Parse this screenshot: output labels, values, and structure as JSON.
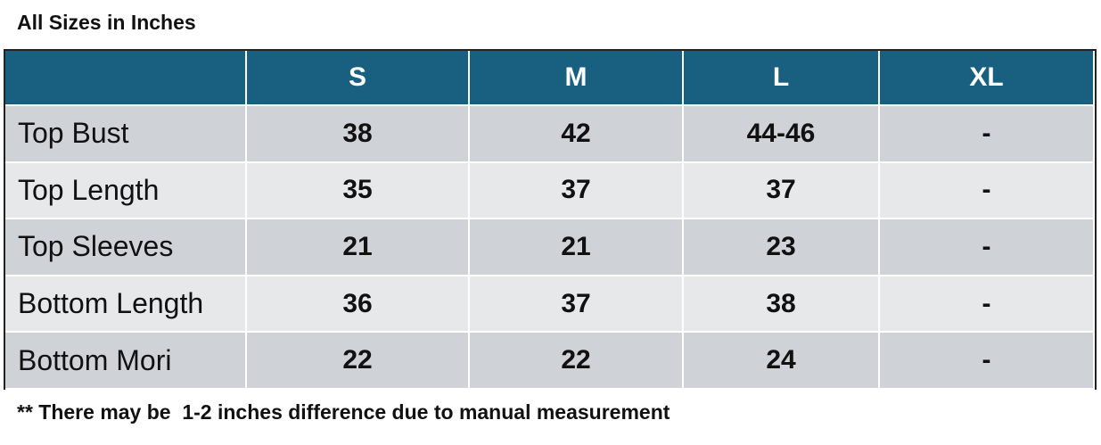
{
  "header": {
    "title": "All Sizes in Inches"
  },
  "table": {
    "columns": [
      "S",
      "M",
      "L",
      "XL"
    ],
    "rows": [
      {
        "label": "Top Bust",
        "cells": [
          38,
          42,
          "44-46",
          "-"
        ]
      },
      {
        "label": "Top Length",
        "cells": [
          35,
          37,
          37,
          "-"
        ]
      },
      {
        "label": "Top Sleeves",
        "cells": [
          21,
          21,
          23,
          "-"
        ]
      },
      {
        "label": "Bottom Length",
        "cells": [
          36,
          37,
          38,
          "-"
        ]
      },
      {
        "label": "Bottom Mori",
        "cells": [
          22,
          22,
          24,
          "-"
        ]
      }
    ]
  },
  "footer": {
    "note": "** There may be  1-2 inches difference due to manual measurement"
  }
}
